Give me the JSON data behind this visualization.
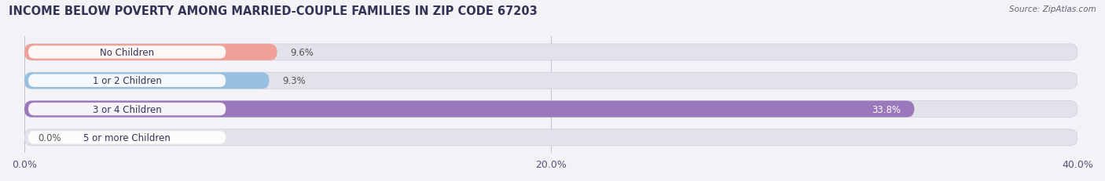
{
  "title": "INCOME BELOW POVERTY AMONG MARRIED-COUPLE FAMILIES IN ZIP CODE 67203",
  "source": "Source: ZipAtlas.com",
  "categories": [
    "No Children",
    "1 or 2 Children",
    "3 or 4 Children",
    "5 or more Children"
  ],
  "values": [
    9.6,
    9.3,
    33.8,
    0.0
  ],
  "bar_colors": [
    "#f0a099",
    "#96bfe0",
    "#9b78bb",
    "#6dc8cc"
  ],
  "xlim": [
    0,
    40
  ],
  "xticks": [
    0.0,
    20.0,
    40.0
  ],
  "xtick_labels": [
    "0.0%",
    "20.0%",
    "40.0%"
  ],
  "background_color": "#f2f2f7",
  "bar_bg_color": "#e2e2ea",
  "title_fontsize": 10.5,
  "tick_fontsize": 9,
  "label_fontsize": 8.5,
  "category_fontsize": 8.5,
  "title_color": "#333355",
  "category_text_color": "#333355",
  "value_label_color_inside": "#ffffff",
  "value_label_color_outside": "#555555"
}
